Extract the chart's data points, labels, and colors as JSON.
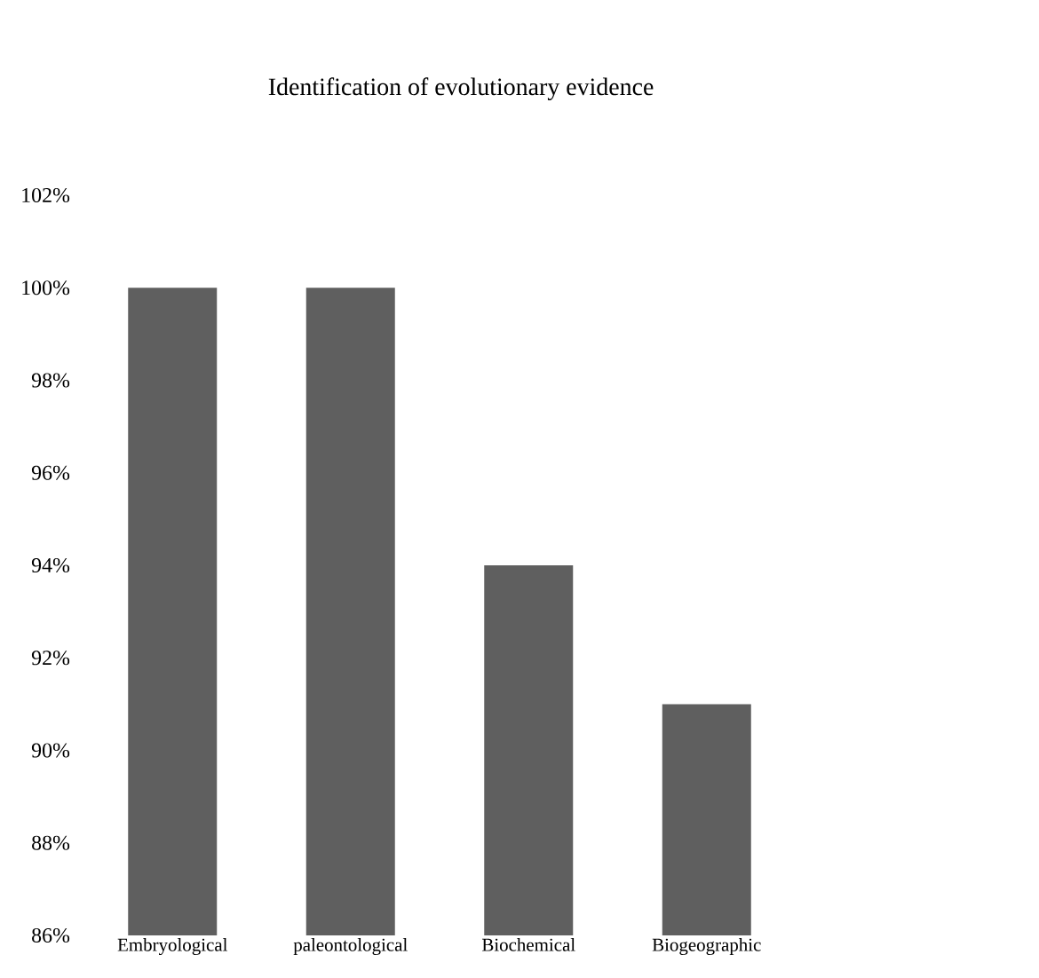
{
  "chart_data": {
    "type": "bar",
    "title": "Identification of evolutionary evidence",
    "categories": [
      "Embryological",
      "paleontological",
      "Biochemical",
      "Biogeographic"
    ],
    "values": [
      100,
      100,
      94,
      91
    ],
    "color": "#5f5f5f",
    "ylim": [
      86,
      102
    ],
    "yticks": [
      {
        "value": 86,
        "label": "86%"
      },
      {
        "value": 88,
        "label": "88%"
      },
      {
        "value": 90,
        "label": "90%"
      },
      {
        "value": 92,
        "label": "92%"
      },
      {
        "value": 94,
        "label": "94%"
      },
      {
        "value": 96,
        "label": "96%"
      },
      {
        "value": 98,
        "label": "98%"
      },
      {
        "value": 100,
        "label": "100%"
      },
      {
        "value": 102,
        "label": "102%"
      }
    ]
  }
}
